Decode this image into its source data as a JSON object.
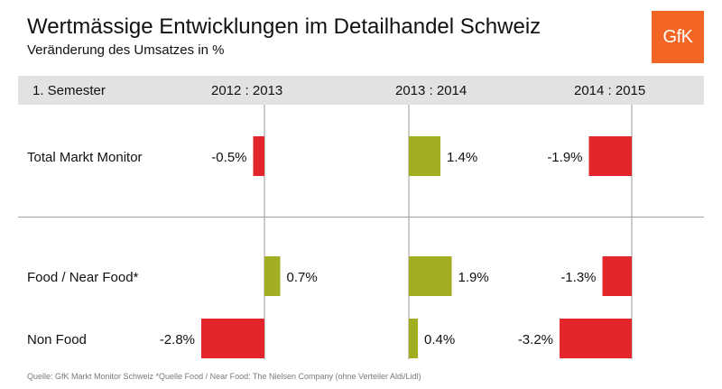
{
  "title": "Wertmässige Entwicklungen im Detailhandel Schweiz",
  "subtitle": "Veränderung des Umsatzes in %",
  "logo_text": "GfK",
  "header": {
    "first_col": "1. Semester",
    "periods": [
      "2012 : 2013",
      "2013 : 2014",
      "2014 : 2015"
    ]
  },
  "footnote": "Quelle: GfK Markt Monitor Schweiz *Quelle Food / Near Food: The Nielsen Company (ohne Verteiler Aldi/Lidl)",
  "colors": {
    "positive": "#a3ad22",
    "negative": "#e3262b",
    "brand": "#f26522"
  },
  "chart_data": {
    "type": "bar",
    "orientation": "horizontal",
    "periods": [
      "2012 : 2013",
      "2013 : 2014",
      "2014 : 2015"
    ],
    "categories": [
      "Total Markt Monitor",
      "Food / Near Food*",
      "Non Food"
    ],
    "values": [
      [
        -0.5,
        1.4,
        -1.9
      ],
      [
        0.7,
        1.9,
        -1.3
      ],
      [
        -2.8,
        0.4,
        -3.2
      ]
    ],
    "labels": [
      [
        "-0.5%",
        "1.4%",
        "-1.9%"
      ],
      [
        "0.7%",
        "1.9%",
        "-1.3%"
      ],
      [
        "-2.8%",
        "0.4%",
        "-3.2%"
      ]
    ],
    "unit": "%"
  }
}
